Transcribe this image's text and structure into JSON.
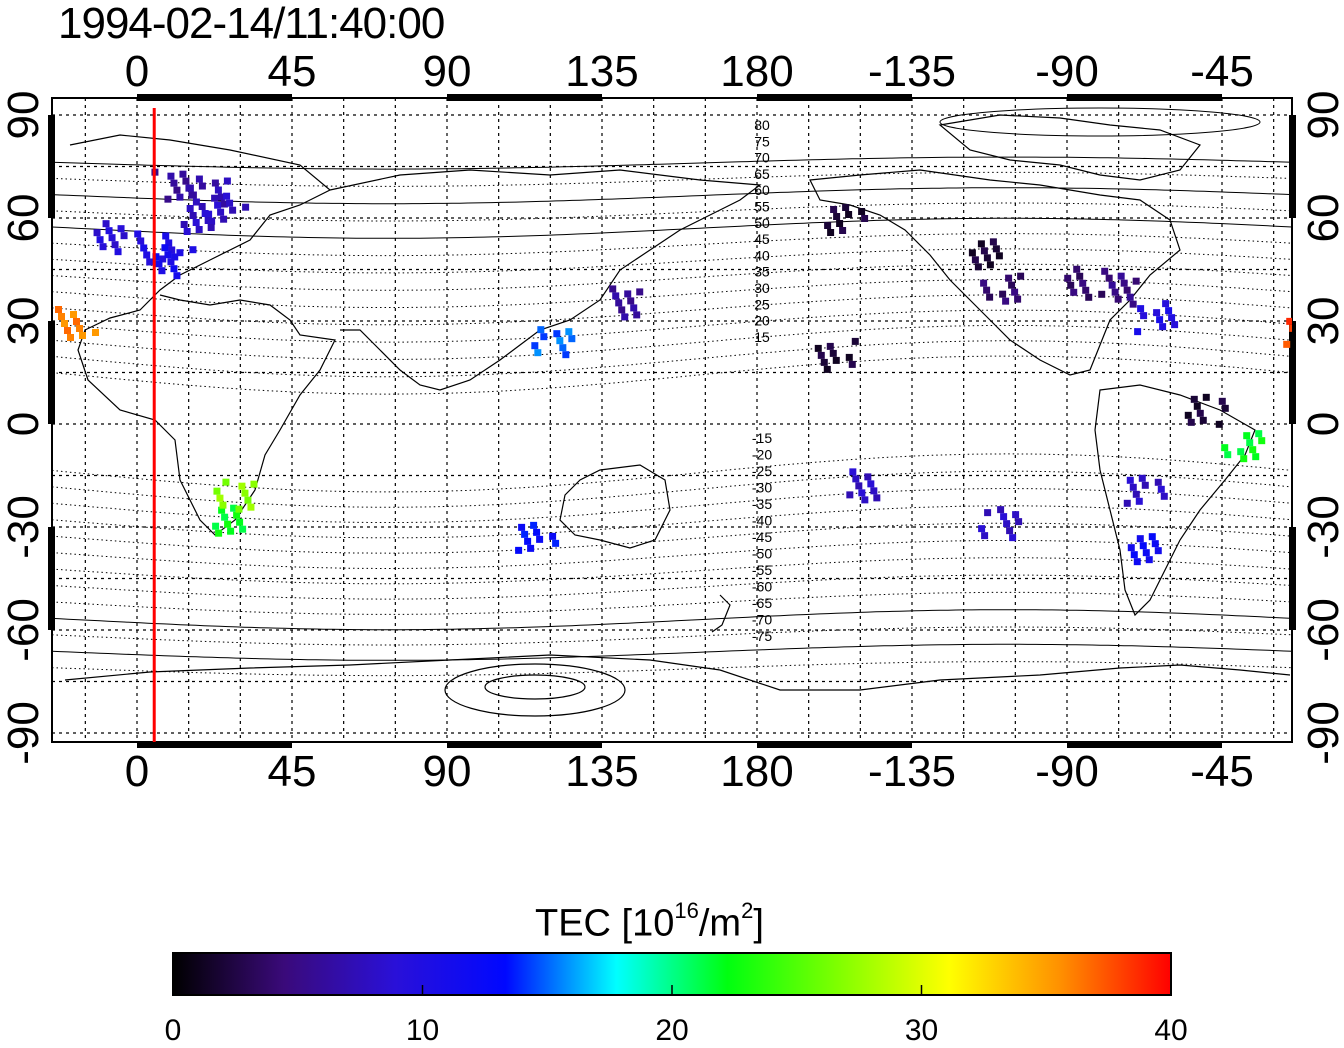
{
  "title": "1994-02-14/11:40:00",
  "x_ticks": [
    0,
    45,
    90,
    135,
    180,
    -135,
    -90,
    -45
  ],
  "y_ticks_left": [
    90,
    60,
    30,
    0,
    -30,
    -60,
    -90
  ],
  "y_ticks_right": [
    90,
    60,
    30,
    0,
    -30,
    -60,
    -90
  ],
  "mlat_labels_north": [
    "80",
    "75",
    "70",
    "65",
    "60",
    "55",
    "50",
    "45",
    "40",
    "35",
    "30",
    "25",
    "20",
    "15"
  ],
  "mlat_labels_south": [
    "-15",
    "-20",
    "-25",
    "-30",
    "-35",
    "-40",
    "-45",
    "-50",
    "-55",
    "-60",
    "-65",
    "-70",
    "-75"
  ],
  "colorbar": {
    "title_main": "TEC  [10",
    "title_sup1": "16",
    "title_mid": "/m",
    "title_sup2": "2",
    "title_end": "]",
    "ticks": [
      "0",
      "10",
      "20",
      "30",
      "40"
    ],
    "min": 0,
    "max": 40,
    "stops": [
      "#000000",
      "#3a0a7a",
      "#2a10d8",
      "#0008ff",
      "#00ffff",
      "#00ff10",
      "#80ff00",
      "#ffff00",
      "#ff9000",
      "#ff0000"
    ]
  },
  "colors": {
    "grid": "#000000",
    "terminator": "#ff0000"
  },
  "terminator_longitude": 5,
  "tec_points": [
    {
      "lon": 10,
      "lat": 70,
      "tec": 6
    },
    {
      "lon": 20,
      "lat": 68,
      "tec": 7
    },
    {
      "lon": 25,
      "lat": 63,
      "tec": 8
    },
    {
      "lon": 15,
      "lat": 60,
      "tec": 8
    },
    {
      "lon": 5,
      "lat": 52,
      "tec": 10
    },
    {
      "lon": 10,
      "lat": 48,
      "tec": 11
    },
    {
      "lon": -10,
      "lat": 55,
      "tec": 9
    },
    {
      "lon": -22,
      "lat": 28,
      "tec": 38
    },
    {
      "lon": -18,
      "lat": 30,
      "tec": 36
    },
    {
      "lon": 140,
      "lat": 36,
      "tec": 6
    },
    {
      "lon": 120,
      "lat": 25,
      "tec": 15
    },
    {
      "lon": 115,
      "lat": -32,
      "tec": 13
    },
    {
      "lon": 25,
      "lat": -27,
      "tec": 22
    },
    {
      "lon": 28,
      "lat": -20,
      "tec": 27
    },
    {
      "lon": -155,
      "lat": 60,
      "tec": 2
    },
    {
      "lon": -115,
      "lat": 50,
      "tec": 2
    },
    {
      "lon": -110,
      "lat": 40,
      "tec": 4
    },
    {
      "lon": -85,
      "lat": 42,
      "tec": 4
    },
    {
      "lon": -75,
      "lat": 40,
      "tec": 5
    },
    {
      "lon": -65,
      "lat": 32,
      "tec": 10
    },
    {
      "lon": -158,
      "lat": 21,
      "tec": 2
    },
    {
      "lon": -150,
      "lat": -17,
      "tec": 8
    },
    {
      "lon": -110,
      "lat": -28,
      "tec": 8
    },
    {
      "lon": -68,
      "lat": -18,
      "tec": 8
    },
    {
      "lon": -68,
      "lat": -35,
      "tec": 12
    },
    {
      "lon": -40,
      "lat": -5,
      "tec": 22
    },
    {
      "lon": -50,
      "lat": 5,
      "tec": 2
    }
  ]
}
